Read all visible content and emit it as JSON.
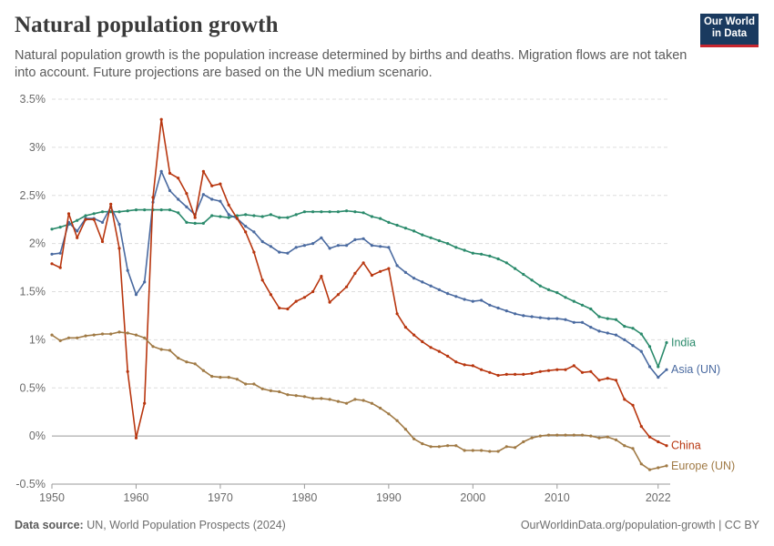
{
  "header": {
    "title": "Natural population growth",
    "subtitle": "Natural population growth is the population increase determined by births and deaths. Migration flows are not taken into account. Future projections are based on the UN medium scenario.",
    "logo_line1": "Our World",
    "logo_line2": "in Data"
  },
  "footer": {
    "source_label": "Data source:",
    "source_text": "UN, World Population Prospects (2024)",
    "link": "OurWorldinData.org/population-growth | CC BY"
  },
  "colors": {
    "India": "#2a8a6b",
    "Asia (UN)": "#4a6aa0",
    "China": "#b8360f",
    "Europe (UN)": "#a07a45",
    "grid": "#dddddd",
    "zero": "#9a9a9a"
  },
  "chart_data": {
    "type": "line",
    "xlabel": "",
    "ylabel": "",
    "xlim": [
      1950,
      2023
    ],
    "ylim": [
      -0.5,
      3.5
    ],
    "x_ticks": [
      "1950",
      "1960",
      "1970",
      "1980",
      "1990",
      "2000",
      "2010",
      "2022"
    ],
    "y_ticks": [
      "-0.5%",
      "0%",
      "0.5%",
      "1%",
      "1.5%",
      "2%",
      "2.5%",
      "3%",
      "3.5%"
    ],
    "grid": true,
    "legend": "inline labels at line ends (right)",
    "x": [
      1950,
      1951,
      1952,
      1953,
      1954,
      1955,
      1956,
      1957,
      1958,
      1959,
      1960,
      1961,
      1962,
      1963,
      1964,
      1965,
      1966,
      1967,
      1968,
      1969,
      1970,
      1971,
      1972,
      1973,
      1974,
      1975,
      1976,
      1977,
      1978,
      1979,
      1980,
      1981,
      1982,
      1983,
      1984,
      1985,
      1986,
      1987,
      1988,
      1989,
      1990,
      1991,
      1992,
      1993,
      1994,
      1995,
      1996,
      1997,
      1998,
      1999,
      2000,
      2001,
      2002,
      2003,
      2004,
      2005,
      2006,
      2007,
      2008,
      2009,
      2010,
      2011,
      2012,
      2013,
      2014,
      2015,
      2016,
      2017,
      2018,
      2019,
      2020,
      2021,
      2022,
      2023
    ],
    "series": [
      {
        "name": "India",
        "values": [
          2.15,
          2.17,
          2.2,
          2.24,
          2.29,
          2.31,
          2.33,
          2.33,
          2.33,
          2.34,
          2.35,
          2.35,
          2.35,
          2.35,
          2.35,
          2.32,
          2.22,
          2.21,
          2.21,
          2.29,
          2.28,
          2.27,
          2.29,
          2.3,
          2.29,
          2.28,
          2.3,
          2.27,
          2.27,
          2.3,
          2.33,
          2.33,
          2.33,
          2.33,
          2.33,
          2.34,
          2.33,
          2.32,
          2.28,
          2.26,
          2.22,
          2.19,
          2.16,
          2.13,
          2.09,
          2.06,
          2.03,
          2.0,
          1.96,
          1.93,
          1.9,
          1.89,
          1.87,
          1.84,
          1.8,
          1.74,
          1.68,
          1.62,
          1.56,
          1.52,
          1.49,
          1.44,
          1.4,
          1.36,
          1.32,
          1.24,
          1.22,
          1.21,
          1.14,
          1.12,
          1.06,
          0.93,
          0.72,
          0.97
        ]
      },
      {
        "name": "Asia (UN)",
        "values": [
          1.89,
          1.9,
          2.22,
          2.13,
          2.26,
          2.26,
          2.22,
          2.38,
          2.2,
          1.72,
          1.47,
          1.6,
          2.43,
          2.75,
          2.55,
          2.46,
          2.38,
          2.3,
          2.51,
          2.46,
          2.44,
          2.3,
          2.26,
          2.18,
          2.12,
          2.02,
          1.97,
          1.91,
          1.9,
          1.96,
          1.98,
          2.0,
          2.06,
          1.95,
          1.98,
          1.98,
          2.04,
          2.05,
          1.98,
          1.97,
          1.96,
          1.77,
          1.7,
          1.64,
          1.6,
          1.56,
          1.52,
          1.48,
          1.45,
          1.42,
          1.4,
          1.41,
          1.36,
          1.33,
          1.3,
          1.27,
          1.25,
          1.24,
          1.23,
          1.22,
          1.22,
          1.21,
          1.18,
          1.18,
          1.13,
          1.09,
          1.07,
          1.05,
          1.0,
          0.94,
          0.88,
          0.72,
          0.61,
          0.69
        ]
      },
      {
        "name": "China",
        "values": [
          1.79,
          1.75,
          2.31,
          2.06,
          2.25,
          2.25,
          2.02,
          2.41,
          1.95,
          0.67,
          -0.02,
          0.34,
          2.48,
          3.29,
          2.73,
          2.68,
          2.52,
          2.27,
          2.75,
          2.6,
          2.62,
          2.4,
          2.26,
          2.12,
          1.91,
          1.62,
          1.47,
          1.33,
          1.32,
          1.4,
          1.44,
          1.5,
          1.66,
          1.39,
          1.47,
          1.55,
          1.69,
          1.8,
          1.67,
          1.71,
          1.74,
          1.27,
          1.13,
          1.05,
          0.98,
          0.92,
          0.88,
          0.83,
          0.77,
          0.74,
          0.73,
          0.69,
          0.66,
          0.63,
          0.64,
          0.64,
          0.64,
          0.65,
          0.67,
          0.68,
          0.69,
          0.69,
          0.73,
          0.66,
          0.67,
          0.58,
          0.6,
          0.58,
          0.38,
          0.32,
          0.1,
          -0.01,
          -0.06,
          -0.1
        ]
      },
      {
        "name": "Europe (UN)",
        "values": [
          1.05,
          0.99,
          1.02,
          1.02,
          1.04,
          1.05,
          1.06,
          1.06,
          1.08,
          1.07,
          1.05,
          1.02,
          0.93,
          0.9,
          0.89,
          0.81,
          0.77,
          0.75,
          0.68,
          0.62,
          0.61,
          0.61,
          0.59,
          0.54,
          0.54,
          0.49,
          0.47,
          0.46,
          0.43,
          0.42,
          0.41,
          0.39,
          0.39,
          0.38,
          0.36,
          0.34,
          0.38,
          0.37,
          0.34,
          0.29,
          0.23,
          0.16,
          0.07,
          -0.03,
          -0.08,
          -0.11,
          -0.11,
          -0.1,
          -0.1,
          -0.15,
          -0.15,
          -0.15,
          -0.16,
          -0.16,
          -0.11,
          -0.12,
          -0.06,
          -0.02,
          0.0,
          0.01,
          0.01,
          0.01,
          0.01,
          0.01,
          0.0,
          -0.02,
          -0.01,
          -0.04,
          -0.1,
          -0.13,
          -0.29,
          -0.35,
          -0.33,
          -0.31
        ]
      }
    ]
  }
}
